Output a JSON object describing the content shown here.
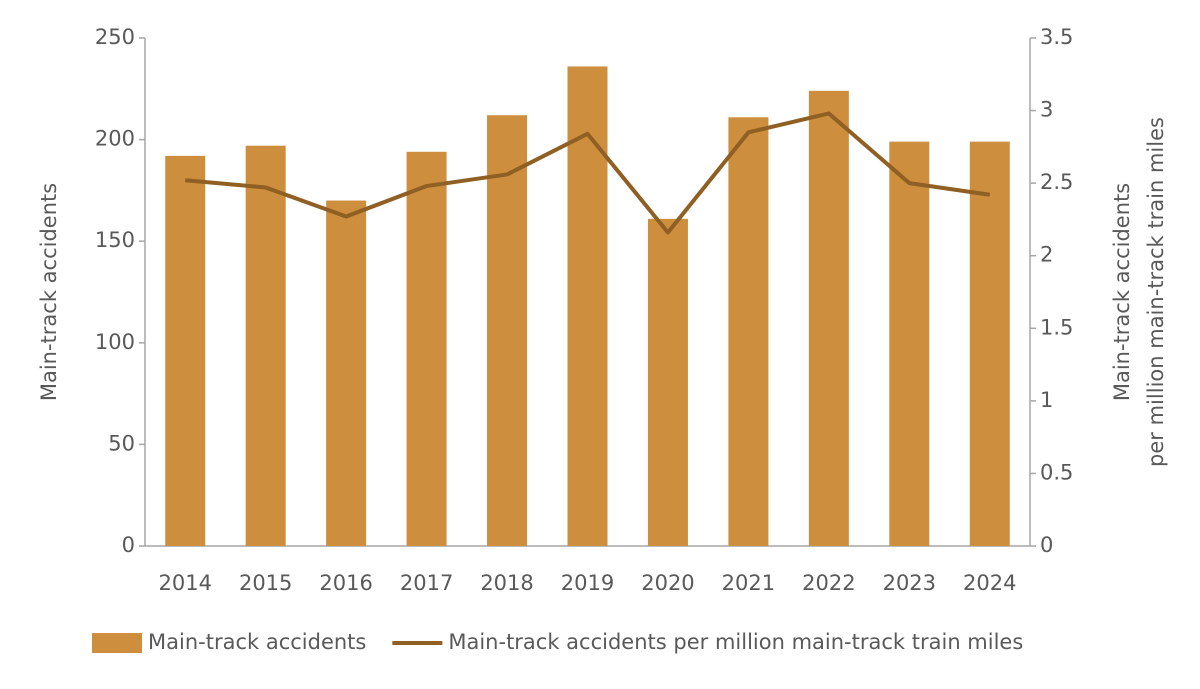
{
  "chart_data": {
    "type": "bar-line",
    "categories": [
      "2014",
      "2015",
      "2016",
      "2017",
      "2018",
      "2019",
      "2020",
      "2021",
      "2022",
      "2023",
      "2024"
    ],
    "series": [
      {
        "name": "Main-track accidents",
        "type": "bar",
        "color": "#cd8e3e",
        "axis": "y",
        "values": [
          192,
          197,
          170,
          194,
          212,
          236,
          161,
          211,
          224,
          199,
          199
        ]
      },
      {
        "name": "Main-track accidents per million main-track train miles",
        "type": "line",
        "color": "#8f5f24",
        "axis": "y2",
        "values": [
          2.52,
          2.47,
          2.27,
          2.48,
          2.56,
          2.84,
          2.16,
          2.85,
          2.98,
          2.5,
          2.42
        ]
      }
    ],
    "ylabel": "Main-track accidents",
    "y2label": [
      "Main-track accidents",
      "per million main-track train miles"
    ],
    "ylim": [
      0,
      250
    ],
    "yticks": [
      0,
      50,
      100,
      150,
      200,
      250
    ],
    "y2lim": [
      0,
      3.5
    ],
    "y2ticks": [
      0,
      0.5,
      1,
      1.5,
      2,
      2.5,
      3,
      3.5
    ],
    "grid": false,
    "legend": "bottom"
  }
}
